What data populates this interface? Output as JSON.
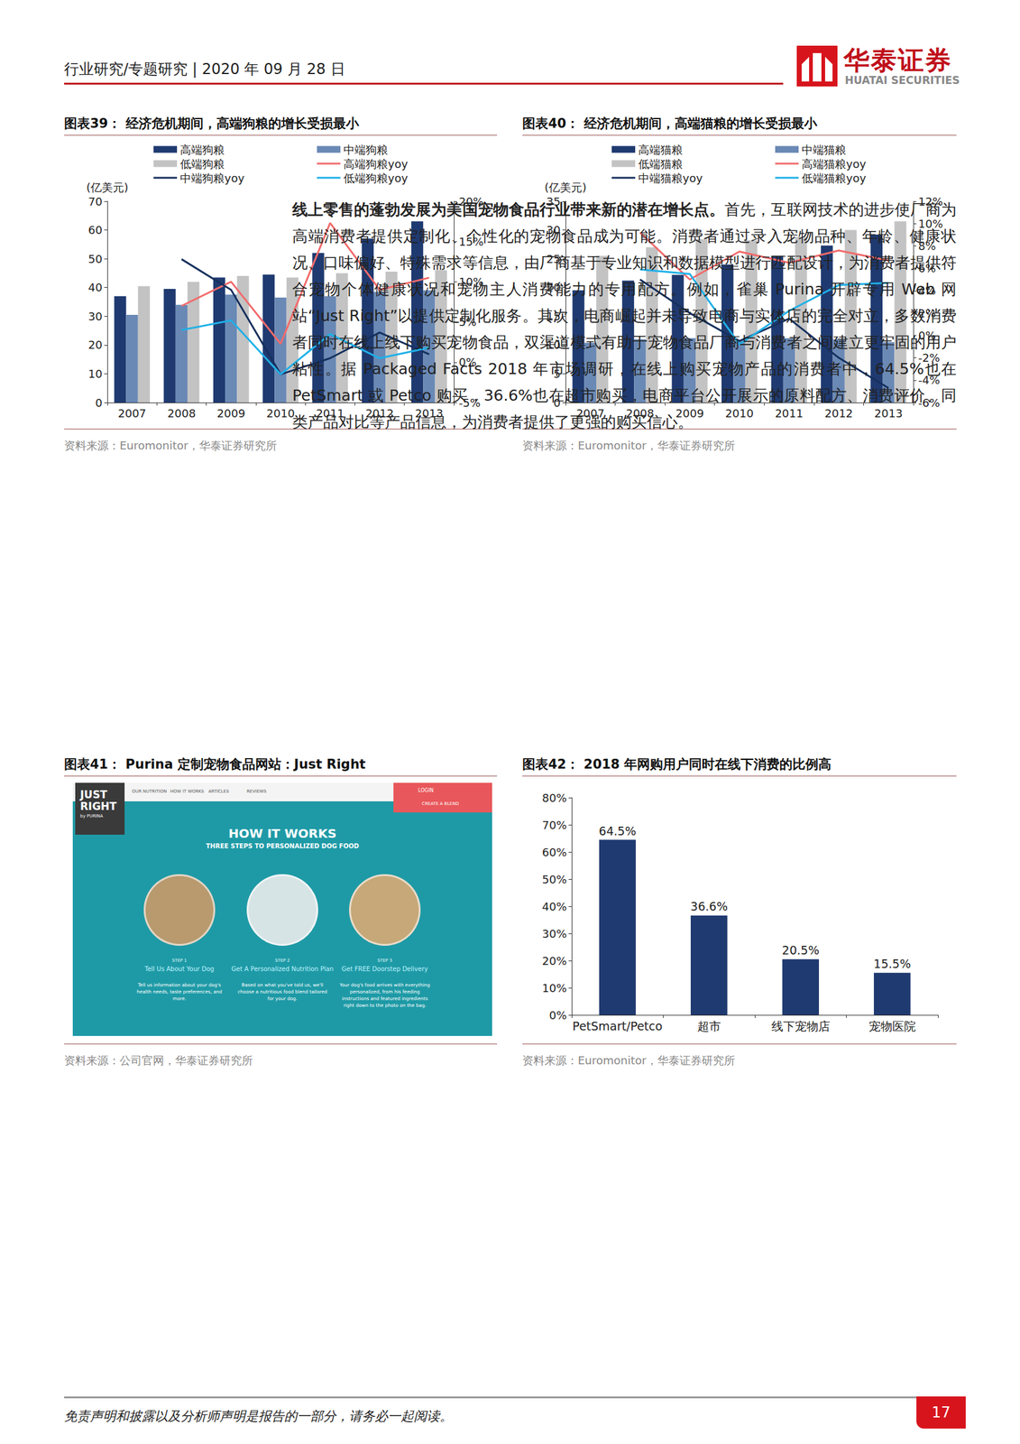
{
  "header": {
    "left": "行业研究/专题研究 | 2020 年 09 月 28 日",
    "logo_cn": "华泰证券",
    "logo_en": "HUATAI SECURITIES"
  },
  "chart_data": [
    {
      "type": "bar",
      "title": "图表39： 经济危机期间，高端狗粮的增长受损最小",
      "source": "资料来源：Euromonitor，华泰证券研究所",
      "ylabel": "(亿美元)",
      "categories": [
        "2007",
        "2008",
        "2009",
        "2010",
        "2011",
        "2012",
        "2013"
      ],
      "series": [
        {
          "name": "高端狗粮",
          "type": "bar",
          "color": "#1f3a70",
          "values": [
            37,
            39.5,
            43.5,
            44.5,
            52,
            57,
            63
          ]
        },
        {
          "name": "中端狗粮",
          "type": "bar",
          "color": "#6a89b5",
          "values": [
            30.5,
            34,
            37.5,
            36.5,
            37,
            38.5,
            39
          ]
        },
        {
          "name": "低端狗粮",
          "type": "bar",
          "color": "#c3c3c3",
          "values": [
            40.5,
            42,
            44,
            43.5,
            45,
            45.5,
            46
          ]
        },
        {
          "name": "高端狗粮yoy",
          "type": "line",
          "axis": "y2",
          "color": "#f26b6b",
          "values": [
            null,
            7,
            10,
            2.3,
            17.3,
            9,
            10.5
          ]
        },
        {
          "name": "中端狗粮yoy",
          "type": "line",
          "axis": "y2",
          "color": "#16305e",
          "values": [
            null,
            12.8,
            9,
            -1.5,
            0.5,
            3.7,
            1
          ]
        },
        {
          "name": "低端狗粮yoy",
          "type": "line",
          "axis": "y2",
          "color": "#1fb0e8",
          "values": [
            null,
            4,
            5.2,
            -1.5,
            3.5,
            0.5,
            1.8
          ]
        }
      ],
      "ylim": [
        0,
        70
      ],
      "yticks": [
        0,
        10,
        20,
        30,
        40,
        50,
        60,
        70
      ],
      "y2lim": [
        -5,
        20
      ],
      "y2ticks": [
        {
          "value": -5,
          "label": "-5%"
        },
        {
          "value": 0,
          "label": "0%"
        },
        {
          "value": 5,
          "label": "5%"
        },
        {
          "value": 10,
          "label": "10%"
        },
        {
          "value": 15,
          "label": "15%"
        },
        {
          "value": 20,
          "label": "20%"
        }
      ],
      "grid": false,
      "legend": "top"
    },
    {
      "type": "bar",
      "title": "图表40： 经济危机期间，高端猫粮的增长受损最小",
      "source": "资料来源：Euromonitor，华泰证券研究所",
      "ylabel": "(亿美元)",
      "categories": [
        "2007",
        "2008",
        "2009",
        "2010",
        "2011",
        "2012",
        "2013"
      ],
      "series": [
        {
          "name": "高端猫粮",
          "type": "bar",
          "color": "#1f3a70",
          "values": [
            19.5,
            21.2,
            22.2,
            24,
            25.5,
            27.3,
            29.2
          ]
        },
        {
          "name": "中端猫粮",
          "type": "bar",
          "color": "#6a89b5",
          "values": [
            10.4,
            11,
            11.2,
            10.8,
            11.2,
            11,
            10.5
          ]
        },
        {
          "name": "低端猫粮",
          "type": "bar",
          "color": "#c3c3c3",
          "values": [
            25.5,
            27,
            28.4,
            28.2,
            28.8,
            30,
            31.5
          ]
        },
        {
          "name": "高端猫粮yoy",
          "type": "line",
          "axis": "y2",
          "color": "#f26b6b",
          "values": [
            null,
            9.2,
            5,
            7.5,
            6.5,
            7.6,
            6.7
          ]
        },
        {
          "name": "中端猫粮yoy",
          "type": "line",
          "axis": "y2",
          "color": "#16305e",
          "values": [
            null,
            5,
            2,
            -0.5,
            1.5,
            -2,
            -4.7
          ]
        },
        {
          "name": "低端猫粮yoy",
          "type": "line",
          "axis": "y2",
          "color": "#1fb0e8",
          "values": [
            null,
            5.9,
            5.5,
            -0.8,
            2.2,
            4.5,
            4.7
          ]
        }
      ],
      "ylim": [
        0,
        35
      ],
      "yticks": [
        0,
        5,
        10,
        15,
        20,
        25,
        30,
        35
      ],
      "y2lim": [
        -6,
        12
      ],
      "y2ticks": [
        {
          "value": -6,
          "label": "-6%"
        },
        {
          "value": -4,
          "label": "-4%"
        },
        {
          "value": -2,
          "label": "-2%"
        },
        {
          "value": 0,
          "label": "0%"
        },
        {
          "value": 2,
          "label": "2%"
        },
        {
          "value": 4,
          "label": "4%"
        },
        {
          "value": 6,
          "label": "6%"
        },
        {
          "value": 8,
          "label": "8%"
        },
        {
          "value": 10,
          "label": "10%"
        },
        {
          "value": 12,
          "label": "12%"
        }
      ],
      "grid": false,
      "legend": "top"
    },
    {
      "type": "bar",
      "title": "图表42： 2018 年网购用户同时在线下消费的比例高",
      "source": "资料来源：Euromonitor，华泰证券研究所",
      "categories": [
        "PetSmart/Petco",
        "超市",
        "线下宠物店",
        "宠物医院"
      ],
      "values": [
        64.5,
        36.6,
        20.5,
        15.5
      ],
      "value_labels": [
        "64.5%",
        "36.6%",
        "20.5%",
        "15.5%"
      ],
      "color": "#1f3a70",
      "ylim": [
        0,
        80
      ],
      "yticks": [
        {
          "value": 0,
          "label": "0%"
        },
        {
          "value": 10,
          "label": "10%"
        },
        {
          "value": 20,
          "label": "20%"
        },
        {
          "value": 30,
          "label": "30%"
        },
        {
          "value": 40,
          "label": "40%"
        },
        {
          "value": 50,
          "label": "50%"
        },
        {
          "value": 60,
          "label": "60%"
        },
        {
          "value": 70,
          "label": "70%"
        },
        {
          "value": 80,
          "label": "80%"
        }
      ],
      "data_labels": true,
      "grid": false
    }
  ],
  "paragraph": {
    "lead": "线上零售的蓬勃发展为美国宠物食品行业带来新的潜在增长点。",
    "body": "首先，互联网技术的进步使厂商为高端消费者提供定制化、个性化的宠物食品成为可能。消费者通过录入宠物品种、年龄、健康状况、口味偏好、特殊需求等信息，由厂商基于专业知识和数据模型进行匹配设计，为消费者提供符合宠物个体健康状况和宠物主人消费能力的专用配方。例如，雀巢 Purina 开辟专用 Web 网站“Just Right”以提供定制化服务。其次，电商崛起并未导致电商与实体店的完全对立，多数消费者同时在线上线下购买宠物食品，双渠道模式有助于宠物食品厂商与消费者之间建立更牢固的用户粘性。据 Packaged Facts 2018 年市场调研，在线上购买宠物产品的消费者中，64.5%也在 PetSmart 或 Petco 购买，36.6%也在超市购买，电商平台公开展示的原料配方、消费评价、同类产品对比等产品信息，为消费者提供了更强的购买信心。"
  },
  "screenshot": {
    "title": "图表41： Purina 定制宠物食品网站：Just Right",
    "source": "资料来源：公司官网，华泰证券研究所",
    "logo": [
      "JUST",
      "RIGHT",
      "by PURINA"
    ],
    "nav": [
      "OUR NUTRITION",
      "HOW IT WORKS",
      "ARTICLES",
      "REVIEWS"
    ],
    "buttons": [
      "LOGIN",
      "CREATE A BLEND"
    ],
    "heading": "HOW IT WORKS",
    "subheading": "THREE STEPS TO PERSONALIZED DOG FOOD",
    "steps": [
      {
        "step": "STEP 1",
        "title": "Tell Us About Your Dog",
        "text": "Tell us information about your dog's health needs, taste preferences, and more."
      },
      {
        "step": "STEP 2",
        "title": "Get A Personalized Nutrition Plan",
        "text": "Based on what you've told us, we'll choose a nutritious food blend tailored for your dog."
      },
      {
        "step": "STEP 3",
        "title": "Get FREE Doorstep Delivery",
        "text": "Your dog's food arrives with everything personalized, from his feeding instructions and featured ingredients right down to the photo on the bag."
      }
    ]
  },
  "footer": {
    "disclaimer": "免责声明和披露以及分析师声明是报告的一部分，请务必一起阅读。",
    "page": "17"
  }
}
